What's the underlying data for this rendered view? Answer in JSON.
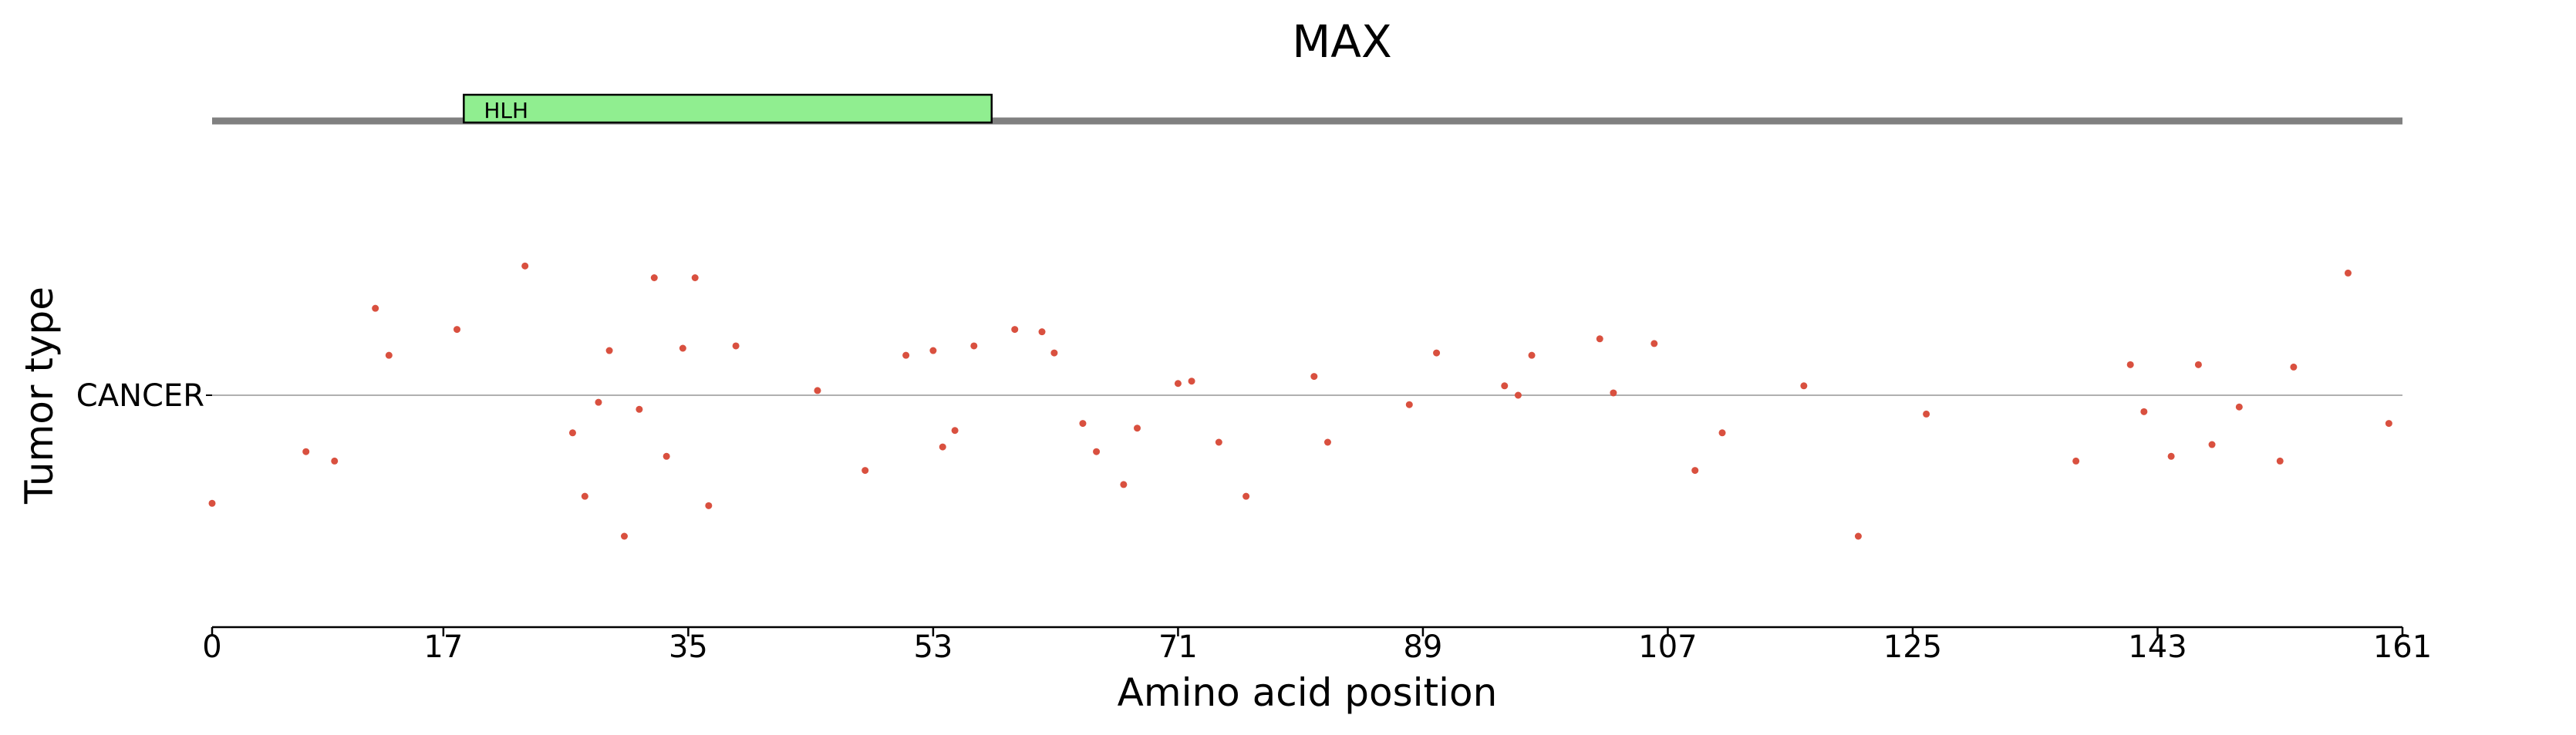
{
  "chart_data": {
    "type": "scatter",
    "title": "MAX",
    "xlabel": "Amino acid position",
    "ylabel": "Tumor type",
    "xlim": [
      0,
      161
    ],
    "xticks": [
      "0",
      "17",
      "35",
      "53",
      "71",
      "89",
      "107",
      "125",
      "143",
      "161"
    ],
    "xtick_values": [
      0,
      17,
      35,
      53,
      71,
      89,
      107,
      125,
      143,
      161
    ],
    "categories": [
      "CANCER"
    ],
    "domains": [
      {
        "name": "HLH",
        "start": 18.5,
        "end": 57.3,
        "color": "#90ee90"
      }
    ],
    "protein_length": 161,
    "series": [
      {
        "category": "CANCER",
        "color": "#d9503f",
        "x": [
          0.0,
          6.9,
          9.0,
          12.0,
          13.0,
          18.0,
          23.0,
          26.5,
          27.4,
          28.4,
          29.2,
          30.3,
          31.4,
          32.5,
          33.4,
          34.6,
          35.5,
          36.5,
          38.5,
          44.5,
          48.0,
          51.0,
          53.0,
          53.7,
          54.6,
          56.0,
          59.0,
          61.0,
          61.9,
          64.0,
          65.0,
          67.0,
          68.0,
          71.0,
          72.0,
          74.0,
          76.0,
          81.0,
          82.0,
          88.0,
          90.0,
          95.0,
          96.0,
          97.0,
          102.0,
          103.0,
          106.0,
          109.0,
          111.0,
          117.0,
          121.0,
          126.0,
          137.0,
          141.0,
          142.0,
          144.0,
          146.0,
          147.0,
          149.0,
          152.0,
          153.0,
          157.0,
          160.0
        ],
        "y": [
          -0.46,
          -0.24,
          -0.28,
          0.37,
          0.17,
          0.28,
          0.55,
          -0.16,
          -0.43,
          -0.03,
          0.19,
          -0.6,
          -0.06,
          0.5,
          -0.26,
          0.2,
          0.5,
          -0.47,
          0.21,
          0.02,
          -0.32,
          0.17,
          0.19,
          -0.22,
          -0.15,
          0.21,
          0.28,
          0.27,
          0.18,
          -0.12,
          -0.24,
          -0.38,
          -0.14,
          0.05,
          0.06,
          -0.2,
          -0.43,
          0.08,
          -0.2,
          -0.04,
          0.18,
          0.04,
          0.0,
          0.17,
          0.24,
          0.01,
          0.22,
          -0.32,
          -0.16,
          0.04,
          -0.6,
          -0.08,
          -0.28,
          0.13,
          -0.07,
          -0.26,
          0.13,
          -0.21,
          -0.05,
          -0.28,
          0.12,
          0.52,
          -0.12
        ]
      }
    ]
  }
}
